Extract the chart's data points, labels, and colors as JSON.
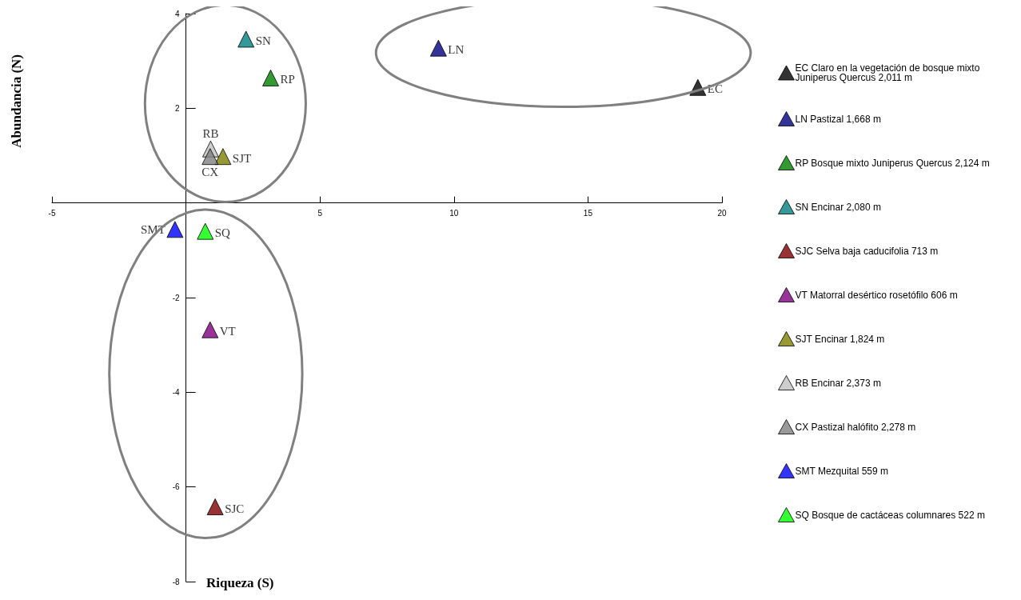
{
  "chart_data": {
    "type": "scatter",
    "xlabel": "Riqueza (S)",
    "ylabel": "Abundancia (N)",
    "xlim": [
      -5,
      20
    ],
    "xticks": [
      -5,
      {
        "value": 0,
        "label": null
      },
      5,
      10,
      15,
      20
    ],
    "ylim": [
      -8,
      4
    ],
    "yticks": [
      -8,
      -6,
      -4,
      -2,
      2,
      4
    ],
    "grid": false,
    "legend": "right",
    "marker": "triangle",
    "series": [
      {
        "name": "EC Claro en la vegetación de bosque mixto Juniperus Quercus 2,011 m",
        "color": "#000000",
        "x": [
          19.1
        ],
        "values": [
          2.44
        ]
      },
      {
        "name": "LN Pastizal 1,668 m",
        "color": "#000080",
        "x": [
          9.42
        ],
        "values": [
          3.27
        ]
      },
      {
        "name": "RP Bosque mixto Juniperus Quercus 2,124 m",
        "color": "#008000",
        "x": [
          3.16
        ],
        "values": [
          2.64
        ]
      },
      {
        "name": "SN Encinar 2,080 m",
        "color": "#008080",
        "x": [
          2.24
        ],
        "values": [
          3.46
        ]
      },
      {
        "name": "SJC Selva baja caducifolia 713 m",
        "color": "#800000",
        "x": [
          1.09
        ],
        "values": [
          -6.42
        ]
      },
      {
        "name": "VT Matorral desértico rosetófilo 606 m",
        "color": "#800080",
        "x": [
          0.9
        ],
        "values": [
          -2.68
        ]
      },
      {
        "name": "SJT Encinar 1,824 m",
        "color": "#808000",
        "x": [
          1.38
        ],
        "values": [
          0.98
        ]
      },
      {
        "name": "RB Encinar 2,373 m",
        "color": "#c0c0c0",
        "x": [
          0.92
        ],
        "values": [
          1.14
        ]
      },
      {
        "name": "CX Pastizal halófito 2,278 m",
        "color": "#808080",
        "x": [
          0.9
        ],
        "values": [
          0.98
        ]
      },
      {
        "name": "SMT Mezquital 559 m",
        "color": "#0000ff",
        "x": [
          -0.41
        ],
        "values": [
          -0.56
        ]
      },
      {
        "name": "SQ Bosque de cactáceas columnares 522 m",
        "color": "#00ff00",
        "x": [
          0.72
        ],
        "values": [
          -0.6
        ]
      }
    ],
    "annotations": [
      {
        "text": "EC",
        "x": 19.1,
        "y": 2.44
      },
      {
        "text": "LN",
        "x": 9.42,
        "y": 3.27
      },
      {
        "text": "RP",
        "x": 3.16,
        "y": 2.64
      },
      {
        "text": "SN",
        "x": 2.24,
        "y": 3.46
      },
      {
        "text": "SJC",
        "x": 1.09,
        "y": -6.42
      },
      {
        "text": "VT",
        "x": 0.9,
        "y": -2.68
      },
      {
        "text": "SJT",
        "x": 1.38,
        "y": 0.98
      },
      {
        "text": "RB",
        "x": 0.92,
        "y": 1.14
      },
      {
        "text": "CX",
        "x": 0.9,
        "y": 0.98
      },
      {
        "text": "SMT",
        "x": -0.41,
        "y": -0.56
      },
      {
        "text": "SQ",
        "x": 0.72,
        "y": -0.6
      }
    ]
  }
}
